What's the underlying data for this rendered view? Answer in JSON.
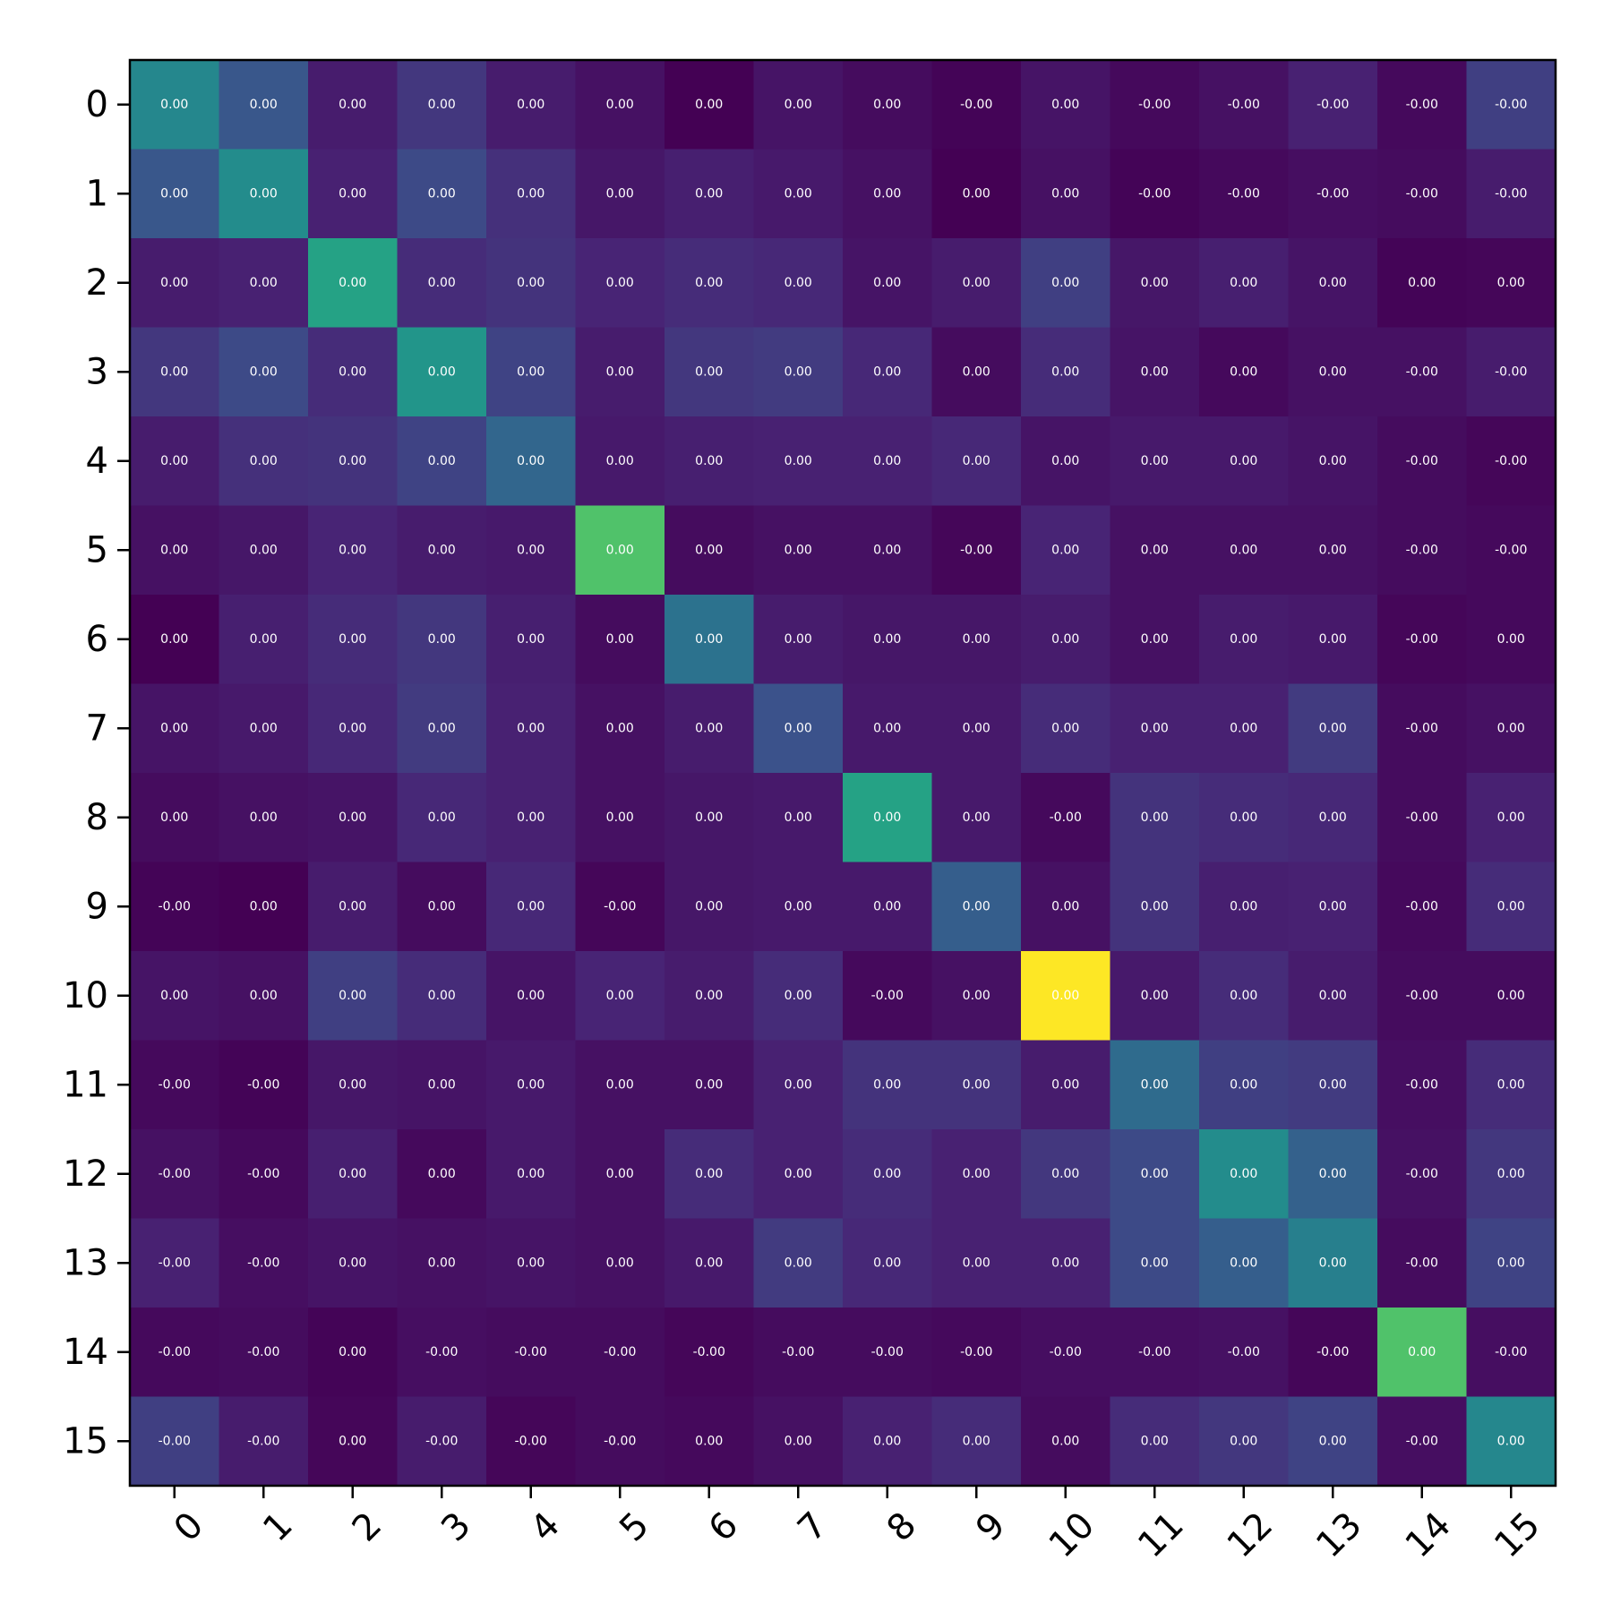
{
  "chart_data": {
    "type": "heatmap",
    "colormap": "viridis",
    "grid": false,
    "colorbar": false,
    "title": "",
    "xlabel": "",
    "ylabel": "",
    "x_categories": [
      "0",
      "1",
      "2",
      "3",
      "4",
      "5",
      "6",
      "7",
      "8",
      "9",
      "10",
      "11",
      "12",
      "13",
      "14",
      "15"
    ],
    "y_categories": [
      "0",
      "1",
      "2",
      "3",
      "4",
      "5",
      "6",
      "7",
      "8",
      "9",
      "10",
      "11",
      "12",
      "13",
      "14",
      "15"
    ],
    "color_levels": [
      [
        0.46,
        0.27,
        0.1,
        0.18,
        0.1,
        0.06,
        0.0,
        0.07,
        0.04,
        0.01,
        0.07,
        0.03,
        0.06,
        0.12,
        0.03,
        0.2
      ],
      [
        0.27,
        0.48,
        0.12,
        0.23,
        0.16,
        0.08,
        0.11,
        0.09,
        0.06,
        0.0,
        0.06,
        0.01,
        0.03,
        0.05,
        0.04,
        0.1
      ],
      [
        0.1,
        0.12,
        0.58,
        0.15,
        0.17,
        0.13,
        0.15,
        0.14,
        0.07,
        0.1,
        0.2,
        0.08,
        0.11,
        0.07,
        0.01,
        0.02
      ],
      [
        0.18,
        0.23,
        0.15,
        0.52,
        0.21,
        0.1,
        0.18,
        0.19,
        0.14,
        0.04,
        0.15,
        0.07,
        0.03,
        0.06,
        0.06,
        0.1
      ],
      [
        0.1,
        0.16,
        0.17,
        0.21,
        0.33,
        0.09,
        0.11,
        0.12,
        0.12,
        0.14,
        0.07,
        0.09,
        0.09,
        0.07,
        0.04,
        0.02
      ],
      [
        0.06,
        0.08,
        0.13,
        0.1,
        0.09,
        0.72,
        0.04,
        0.06,
        0.06,
        0.02,
        0.13,
        0.06,
        0.06,
        0.06,
        0.04,
        0.03
      ],
      [
        0.0,
        0.11,
        0.15,
        0.18,
        0.11,
        0.04,
        0.38,
        0.1,
        0.08,
        0.08,
        0.1,
        0.06,
        0.1,
        0.09,
        0.02,
        0.03
      ],
      [
        0.07,
        0.09,
        0.14,
        0.19,
        0.12,
        0.06,
        0.1,
        0.25,
        0.09,
        0.09,
        0.15,
        0.12,
        0.12,
        0.19,
        0.04,
        0.06
      ],
      [
        0.04,
        0.06,
        0.07,
        0.14,
        0.12,
        0.06,
        0.08,
        0.09,
        0.58,
        0.09,
        0.03,
        0.17,
        0.15,
        0.14,
        0.04,
        0.12
      ],
      [
        0.01,
        0.0,
        0.1,
        0.04,
        0.14,
        0.02,
        0.08,
        0.09,
        0.09,
        0.3,
        0.06,
        0.17,
        0.11,
        0.12,
        0.03,
        0.15
      ],
      [
        0.07,
        0.06,
        0.2,
        0.15,
        0.07,
        0.13,
        0.1,
        0.15,
        0.03,
        0.06,
        1.0,
        0.09,
        0.15,
        0.1,
        0.04,
        0.04
      ],
      [
        0.03,
        0.01,
        0.08,
        0.07,
        0.09,
        0.06,
        0.06,
        0.12,
        0.17,
        0.17,
        0.1,
        0.35,
        0.2,
        0.19,
        0.05,
        0.15
      ],
      [
        0.06,
        0.03,
        0.11,
        0.03,
        0.09,
        0.06,
        0.15,
        0.12,
        0.15,
        0.12,
        0.18,
        0.23,
        0.48,
        0.31,
        0.06,
        0.18
      ],
      [
        0.12,
        0.05,
        0.07,
        0.06,
        0.07,
        0.06,
        0.09,
        0.19,
        0.14,
        0.12,
        0.12,
        0.23,
        0.3,
        0.43,
        0.04,
        0.21
      ],
      [
        0.03,
        0.04,
        0.01,
        0.05,
        0.04,
        0.04,
        0.02,
        0.04,
        0.04,
        0.03,
        0.05,
        0.05,
        0.06,
        0.02,
        0.72,
        0.05
      ],
      [
        0.2,
        0.1,
        0.02,
        0.1,
        0.02,
        0.04,
        0.03,
        0.06,
        0.12,
        0.15,
        0.04,
        0.15,
        0.18,
        0.21,
        0.05,
        0.46
      ]
    ],
    "annotations": [
      [
        "0.00",
        "0.00",
        "0.00",
        "0.00",
        "0.00",
        "0.00",
        "0.00",
        "0.00",
        "0.00",
        "-0.00",
        "0.00",
        "-0.00",
        "-0.00",
        "-0.00",
        "-0.00",
        "-0.00"
      ],
      [
        "0.00",
        "0.00",
        "0.00",
        "0.00",
        "0.00",
        "0.00",
        "0.00",
        "0.00",
        "0.00",
        "0.00",
        "0.00",
        "-0.00",
        "-0.00",
        "-0.00",
        "-0.00",
        "-0.00"
      ],
      [
        "0.00",
        "0.00",
        "0.00",
        "0.00",
        "0.00",
        "0.00",
        "0.00",
        "0.00",
        "0.00",
        "0.00",
        "0.00",
        "0.00",
        "0.00",
        "0.00",
        "0.00",
        "0.00"
      ],
      [
        "0.00",
        "0.00",
        "0.00",
        "0.00",
        "0.00",
        "0.00",
        "0.00",
        "0.00",
        "0.00",
        "0.00",
        "0.00",
        "0.00",
        "0.00",
        "0.00",
        "-0.00",
        "-0.00"
      ],
      [
        "0.00",
        "0.00",
        "0.00",
        "0.00",
        "0.00",
        "0.00",
        "0.00",
        "0.00",
        "0.00",
        "0.00",
        "0.00",
        "0.00",
        "0.00",
        "0.00",
        "-0.00",
        "-0.00"
      ],
      [
        "0.00",
        "0.00",
        "0.00",
        "0.00",
        "0.00",
        "0.00",
        "0.00",
        "0.00",
        "0.00",
        "-0.00",
        "0.00",
        "0.00",
        "0.00",
        "0.00",
        "-0.00",
        "-0.00"
      ],
      [
        "0.00",
        "0.00",
        "0.00",
        "0.00",
        "0.00",
        "0.00",
        "0.00",
        "0.00",
        "0.00",
        "0.00",
        "0.00",
        "0.00",
        "0.00",
        "0.00",
        "-0.00",
        "0.00"
      ],
      [
        "0.00",
        "0.00",
        "0.00",
        "0.00",
        "0.00",
        "0.00",
        "0.00",
        "0.00",
        "0.00",
        "0.00",
        "0.00",
        "0.00",
        "0.00",
        "0.00",
        "-0.00",
        "0.00"
      ],
      [
        "0.00",
        "0.00",
        "0.00",
        "0.00",
        "0.00",
        "0.00",
        "0.00",
        "0.00",
        "0.00",
        "0.00",
        "-0.00",
        "0.00",
        "0.00",
        "0.00",
        "-0.00",
        "0.00"
      ],
      [
        "-0.00",
        "0.00",
        "0.00",
        "0.00",
        "0.00",
        "-0.00",
        "0.00",
        "0.00",
        "0.00",
        "0.00",
        "0.00",
        "0.00",
        "0.00",
        "0.00",
        "-0.00",
        "0.00"
      ],
      [
        "0.00",
        "0.00",
        "0.00",
        "0.00",
        "0.00",
        "0.00",
        "0.00",
        "0.00",
        "-0.00",
        "0.00",
        "0.00",
        "0.00",
        "0.00",
        "0.00",
        "-0.00",
        "0.00"
      ],
      [
        "-0.00",
        "-0.00",
        "0.00",
        "0.00",
        "0.00",
        "0.00",
        "0.00",
        "0.00",
        "0.00",
        "0.00",
        "0.00",
        "0.00",
        "0.00",
        "0.00",
        "-0.00",
        "0.00"
      ],
      [
        "-0.00",
        "-0.00",
        "0.00",
        "0.00",
        "0.00",
        "0.00",
        "0.00",
        "0.00",
        "0.00",
        "0.00",
        "0.00",
        "0.00",
        "0.00",
        "0.00",
        "-0.00",
        "0.00"
      ],
      [
        "-0.00",
        "-0.00",
        "0.00",
        "0.00",
        "0.00",
        "0.00",
        "0.00",
        "0.00",
        "0.00",
        "0.00",
        "0.00",
        "0.00",
        "0.00",
        "0.00",
        "-0.00",
        "0.00"
      ],
      [
        "-0.00",
        "-0.00",
        "0.00",
        "-0.00",
        "-0.00",
        "-0.00",
        "-0.00",
        "-0.00",
        "-0.00",
        "-0.00",
        "-0.00",
        "-0.00",
        "-0.00",
        "-0.00",
        "0.00",
        "-0.00"
      ],
      [
        "-0.00",
        "-0.00",
        "0.00",
        "-0.00",
        "-0.00",
        "-0.00",
        "0.00",
        "0.00",
        "0.00",
        "0.00",
        "0.00",
        "0.00",
        "0.00",
        "0.00",
        "-0.00",
        "0.00"
      ]
    ]
  }
}
